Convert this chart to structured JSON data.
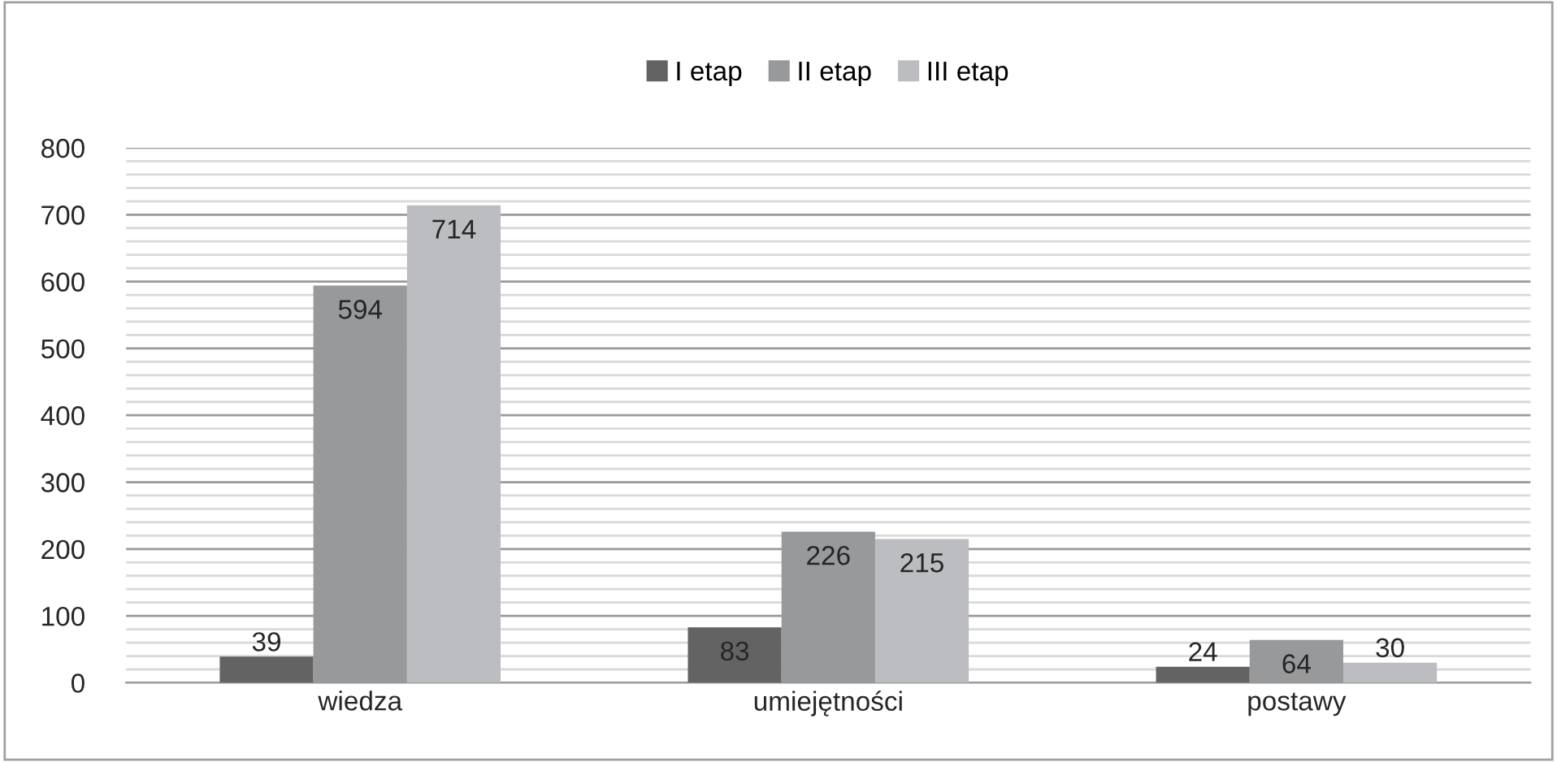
{
  "chart_data": {
    "type": "bar",
    "categories": [
      "wiedza",
      "umiejętności",
      "postawy"
    ],
    "series": [
      {
        "name": "I etap",
        "color": "#636363",
        "values": [
          39,
          83,
          24
        ]
      },
      {
        "name": "II etap",
        "color": "#98999b",
        "values": [
          594,
          226,
          64
        ]
      },
      {
        "name": "III etap",
        "color": "#bcbdc0",
        "values": [
          714,
          215,
          30
        ]
      }
    ],
    "ylim": [
      0,
      800
    ],
    "yticks": [
      0,
      {
        "value": 20,
        "label": null
      },
      {
        "value": 40,
        "label": null
      },
      {
        "value": 60,
        "label": null
      },
      {
        "value": 80,
        "label": null
      },
      100,
      {
        "value": 120,
        "label": null
      },
      {
        "value": 140,
        "label": null
      },
      {
        "value": 160,
        "label": null
      },
      {
        "value": 180,
        "label": null
      },
      200,
      {
        "value": 220,
        "label": null
      },
      {
        "value": 240,
        "label": null
      },
      {
        "value": 260,
        "label": null
      },
      {
        "value": 280,
        "label": null
      },
      300,
      {
        "value": 320,
        "label": null
      },
      {
        "value": 340,
        "label": null
      },
      {
        "value": 360,
        "label": null
      },
      {
        "value": 380,
        "label": null
      },
      400,
      {
        "value": 420,
        "label": null
      },
      {
        "value": 440,
        "label": null
      },
      {
        "value": 460,
        "label": null
      },
      {
        "value": 480,
        "label": null
      },
      500,
      {
        "value": 520,
        "label": null
      },
      {
        "value": 540,
        "label": null
      },
      {
        "value": 560,
        "label": null
      },
      {
        "value": 580,
        "label": null
      },
      600,
      {
        "value": 620,
        "label": null
      },
      {
        "value": 640,
        "label": null
      },
      {
        "value": 660,
        "label": null
      },
      {
        "value": 680,
        "label": null
      },
      700,
      {
        "value": 720,
        "label": null
      },
      {
        "value": 740,
        "label": null
      },
      {
        "value": 760,
        "label": null
      },
      {
        "value": 780,
        "label": null
      },
      800
    ],
    "grid": "y",
    "legend": "top",
    "data_labels": true
  }
}
